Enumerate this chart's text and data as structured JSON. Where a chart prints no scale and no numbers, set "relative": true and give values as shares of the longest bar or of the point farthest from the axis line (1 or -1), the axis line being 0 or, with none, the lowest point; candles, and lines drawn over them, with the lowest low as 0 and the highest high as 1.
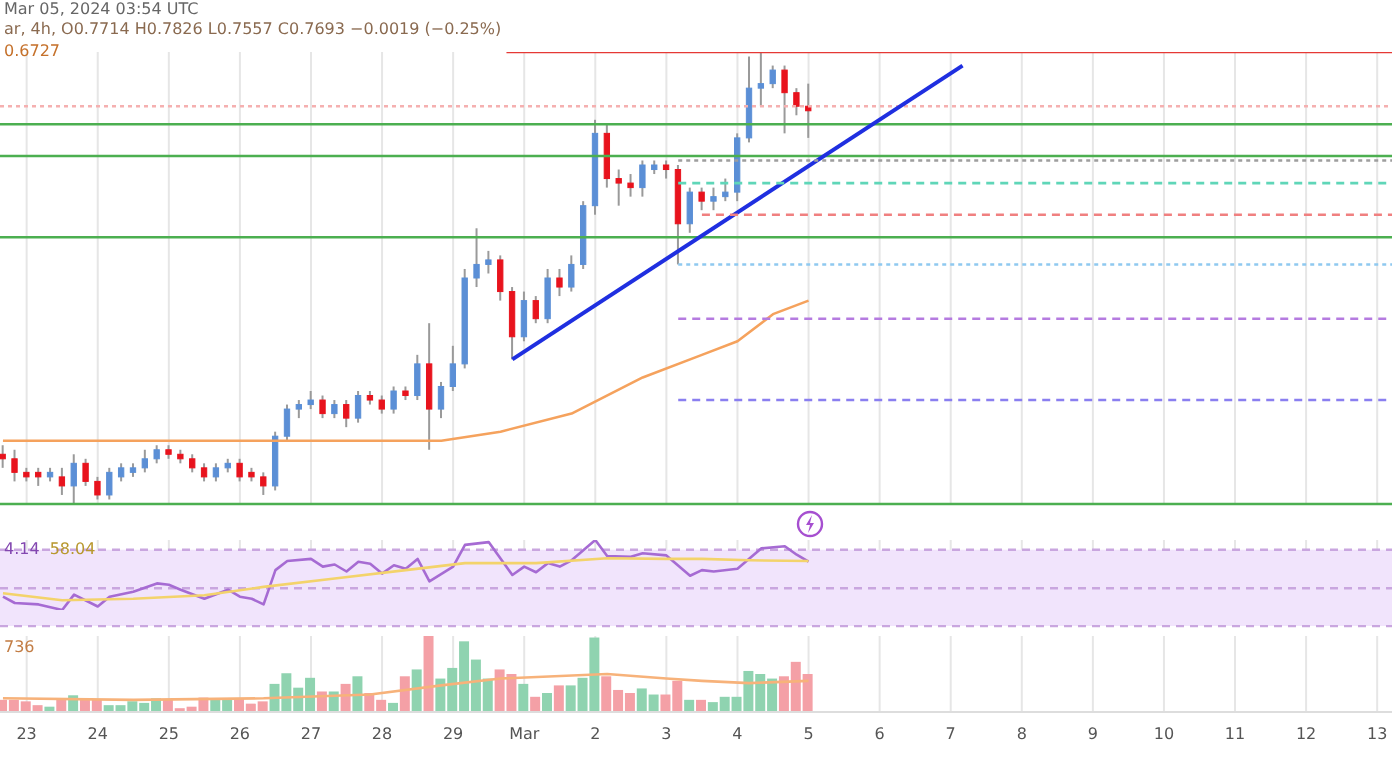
{
  "chart_data": [
    {
      "type": "candlestick",
      "relative": true,
      "title": "Mar 05, 2024 03:54 UTC",
      "subtitle": "ar, 4h, O0.7714 H0.7826 L0.7557 C0.7693 −0.0019 (−0.25%)",
      "annotations": [
        "0.6727"
      ],
      "x": [
        "2024-02-22T16:00",
        "2024-02-22T20:00",
        "2024-02-23T00:00",
        "2024-02-23T04:00",
        "2024-02-23T08:00",
        "2024-02-23T12:00",
        "2024-02-23T16:00",
        "2024-02-23T20:00",
        "2024-02-24T00:00",
        "2024-02-24T04:00",
        "2024-02-24T08:00",
        "2024-02-24T12:00",
        "2024-02-24T16:00",
        "2024-02-24T20:00",
        "2024-02-25T00:00",
        "2024-02-25T04:00",
        "2024-02-25T08:00",
        "2024-02-25T12:00",
        "2024-02-25T16:00",
        "2024-02-25T20:00",
        "2024-02-26T00:00",
        "2024-02-26T04:00",
        "2024-02-26T08:00",
        "2024-02-26T12:00",
        "2024-02-26T16:00",
        "2024-02-26T20:00",
        "2024-02-27T00:00",
        "2024-02-27T04:00",
        "2024-02-27T08:00",
        "2024-02-27T12:00",
        "2024-02-27T16:00",
        "2024-02-27T20:00",
        "2024-02-28T00:00",
        "2024-02-28T04:00",
        "2024-02-28T08:00",
        "2024-02-28T12:00",
        "2024-02-28T16:00",
        "2024-02-28T20:00",
        "2024-02-29T00:00",
        "2024-02-29T04:00",
        "2024-02-29T08:00",
        "2024-02-29T12:00",
        "2024-02-29T16:00",
        "2024-02-29T20:00",
        "2024-03-01T00:00",
        "2024-03-01T04:00",
        "2024-03-01T08:00",
        "2024-03-01T12:00",
        "2024-03-01T16:00",
        "2024-03-01T20:00",
        "2024-03-02T00:00",
        "2024-03-02T04:00",
        "2024-03-02T08:00",
        "2024-03-02T12:00",
        "2024-03-02T16:00",
        "2024-03-02T20:00",
        "2024-03-03T00:00",
        "2024-03-03T04:00",
        "2024-03-03T08:00",
        "2024-03-03T12:00",
        "2024-03-03T16:00",
        "2024-03-03T20:00",
        "2024-03-04T00:00",
        "2024-03-04T04:00",
        "2024-03-04T08:00",
        "2024-03-04T12:00",
        "2024-03-04T16:00",
        "2024-03-04T20:00",
        "2024-03-05T00:00"
      ],
      "ohlc": [
        [
          0.11,
          0.13,
          0.08,
          0.1
        ],
        [
          0.1,
          0.12,
          0.05,
          0.07
        ],
        [
          0.07,
          0.08,
          0.05,
          0.06
        ],
        [
          0.07,
          0.08,
          0.04,
          0.06
        ],
        [
          0.06,
          0.08,
          0.05,
          0.07
        ],
        [
          0.06,
          0.08,
          0.02,
          0.04
        ],
        [
          0.04,
          0.11,
          0.0,
          0.09
        ],
        [
          0.09,
          0.1,
          0.04,
          0.05
        ],
        [
          0.05,
          0.06,
          0.01,
          0.02
        ],
        [
          0.02,
          0.08,
          0.01,
          0.07
        ],
        [
          0.06,
          0.09,
          0.05,
          0.08
        ],
        [
          0.07,
          0.09,
          0.06,
          0.08
        ],
        [
          0.08,
          0.12,
          0.07,
          0.1
        ],
        [
          0.1,
          0.13,
          0.09,
          0.12
        ],
        [
          0.12,
          0.13,
          0.1,
          0.11
        ],
        [
          0.11,
          0.12,
          0.09,
          0.1
        ],
        [
          0.1,
          0.11,
          0.07,
          0.08
        ],
        [
          0.08,
          0.09,
          0.05,
          0.06
        ],
        [
          0.06,
          0.09,
          0.05,
          0.08
        ],
        [
          0.08,
          0.1,
          0.07,
          0.09
        ],
        [
          0.09,
          0.1,
          0.05,
          0.06
        ],
        [
          0.07,
          0.08,
          0.05,
          0.06
        ],
        [
          0.06,
          0.07,
          0.02,
          0.04
        ],
        [
          0.04,
          0.16,
          0.03,
          0.15
        ],
        [
          0.15,
          0.22,
          0.14,
          0.21
        ],
        [
          0.21,
          0.23,
          0.19,
          0.22
        ],
        [
          0.22,
          0.25,
          0.21,
          0.23
        ],
        [
          0.23,
          0.24,
          0.19,
          0.2
        ],
        [
          0.2,
          0.23,
          0.19,
          0.22
        ],
        [
          0.22,
          0.23,
          0.17,
          0.19
        ],
        [
          0.19,
          0.25,
          0.18,
          0.24
        ],
        [
          0.24,
          0.25,
          0.22,
          0.23
        ],
        [
          0.23,
          0.24,
          0.2,
          0.21
        ],
        [
          0.21,
          0.26,
          0.2,
          0.25
        ],
        [
          0.25,
          0.26,
          0.23,
          0.24
        ],
        [
          0.24,
          0.33,
          0.23,
          0.31
        ],
        [
          0.31,
          0.4,
          0.12,
          0.21
        ],
        [
          0.21,
          0.27,
          0.19,
          0.26
        ],
        [
          0.26,
          0.35,
          0.25,
          0.31
        ],
        [
          0.31,
          0.52,
          0.3,
          0.5
        ],
        [
          0.5,
          0.61,
          0.48,
          0.53
        ],
        [
          0.53,
          0.56,
          0.51,
          0.54
        ],
        [
          0.54,
          0.55,
          0.45,
          0.47
        ],
        [
          0.47,
          0.48,
          0.32,
          0.37
        ],
        [
          0.37,
          0.47,
          0.36,
          0.45
        ],
        [
          0.45,
          0.46,
          0.4,
          0.41
        ],
        [
          0.41,
          0.52,
          0.4,
          0.5
        ],
        [
          0.5,
          0.52,
          0.46,
          0.48
        ],
        [
          0.48,
          0.55,
          0.47,
          0.53
        ],
        [
          0.53,
          0.67,
          0.52,
          0.66
        ],
        [
          0.66,
          0.85,
          0.64,
          0.82
        ],
        [
          0.82,
          0.84,
          0.7,
          0.72
        ],
        [
          0.72,
          0.74,
          0.66,
          0.71
        ],
        [
          0.71,
          0.73,
          0.68,
          0.7
        ],
        [
          0.7,
          0.76,
          0.68,
          0.75
        ],
        [
          0.74,
          0.76,
          0.73,
          0.75
        ],
        [
          0.75,
          0.76,
          0.72,
          0.74
        ],
        [
          0.74,
          0.75,
          0.53,
          0.62
        ],
        [
          0.62,
          0.7,
          0.6,
          0.69
        ],
        [
          0.69,
          0.7,
          0.65,
          0.67
        ],
        [
          0.67,
          0.7,
          0.65,
          0.68
        ],
        [
          0.68,
          0.72,
          0.67,
          0.69
        ],
        [
          0.69,
          0.82,
          0.67,
          0.81
        ],
        [
          0.81,
          0.99,
          0.8,
          0.92
        ],
        [
          0.92,
          1.0,
          0.88,
          0.93
        ],
        [
          0.93,
          0.97,
          0.92,
          0.96
        ],
        [
          0.96,
          0.97,
          0.82,
          0.91
        ],
        [
          0.91,
          0.92,
          0.86,
          0.88
        ],
        [
          0.88,
          0.93,
          0.81,
          0.87
        ]
      ],
      "colors": [
        "#e8131d",
        "#e8131d",
        "#e8131d",
        "#e8131d",
        "#5b8fd6",
        "#e8131d",
        "#5b8fd6",
        "#e8131d",
        "#e8131d",
        "#5b8fd6",
        "#5b8fd6",
        "#5b8fd6",
        "#5b8fd6",
        "#5b8fd6",
        "#e8131d",
        "#e8131d",
        "#e8131d",
        "#e8131d",
        "#5b8fd6",
        "#5b8fd6",
        "#e8131d",
        "#e8131d",
        "#e8131d",
        "#5b8fd6",
        "#5b8fd6",
        "#5b8fd6",
        "#5b8fd6",
        "#e8131d",
        "#5b8fd6",
        "#e8131d",
        "#5b8fd6",
        "#e8131d",
        "#e8131d",
        "#5b8fd6",
        "#e8131d",
        "#5b8fd6",
        "#e8131d",
        "#5b8fd6",
        "#5b8fd6",
        "#5b8fd6",
        "#5b8fd6",
        "#5b8fd6",
        "#e8131d",
        "#e8131d",
        "#5b8fd6",
        "#e8131d",
        "#5b8fd6",
        "#e8131d",
        "#5b8fd6",
        "#5b8fd6",
        "#5b8fd6",
        "#e8131d",
        "#e8131d",
        "#e8131d",
        "#5b8fd6",
        "#5b8fd6",
        "#e8131d",
        "#e8131d",
        "#5b8fd6",
        "#e8131d",
        "#5b8fd6",
        "#5b8fd6",
        "#5b8fd6",
        "#5b8fd6",
        "#5b8fd6",
        "#5b8fd6",
        "#e8131d",
        "#e8131d",
        "#e8131d"
      ],
      "series": [
        {
          "type": "line",
          "color": "#f5a25d",
          "x": [
            "2024-02-22T16:00",
            "2024-02-26T20:00",
            "2024-02-28T20:00",
            "2024-02-29T16:00",
            "2024-03-01T16:00",
            "2024-03-02T16:00",
            "2024-03-03T12:00",
            "2024-03-04T00:00",
            "2024-03-04T12:00",
            "2024-03-05T00:00"
          ],
          "values": [
            0.14,
            0.14,
            0.14,
            0.16,
            0.2,
            0.28,
            0.33,
            0.36,
            0.42,
            0.45
          ]
        },
        {
          "type": "line",
          "color": "#1f2fe0",
          "x": [
            "2024-02-29T20:00",
            "2024-03-07T04:00"
          ],
          "values": [
            0.32,
            0.97
          ]
        },
        {
          "type": "line",
          "color": "#e53935",
          "x": [
            "2024-02-29T18:00",
            "2024-03-13T05:00"
          ],
          "values": [
            1,
            1
          ]
        },
        {
          "type": "line",
          "color": "#9e9e9e",
          "line_style": "dotted",
          "x": [
            "2024-03-03T04:00",
            "2024-03-13T05:00"
          ],
          "values": [
            0.76,
            0.76
          ]
        },
        {
          "type": "line",
          "color": "#5fd6b8",
          "line_style": "dashed",
          "x": [
            "2024-03-03T04:00",
            "2024-03-13T05:00"
          ],
          "values": [
            0.71,
            0.71
          ]
        },
        {
          "type": "line",
          "color": "#f08080",
          "line_style": "dashed",
          "x": [
            "2024-03-03T12:00",
            "2024-03-13T05:00"
          ],
          "values": [
            0.64,
            0.64
          ]
        },
        {
          "type": "line",
          "color": "#8fc9f0",
          "line_style": "dotted",
          "x": [
            "2024-03-03T04:00",
            "2024-03-13T05:00"
          ],
          "values": [
            0.53,
            0.53
          ]
        },
        {
          "type": "line",
          "color": "#b57be0",
          "line_style": "dashed",
          "x": [
            "2024-03-03T04:00",
            "2024-03-13T05:00"
          ],
          "values": [
            0.41,
            0.41
          ]
        },
        {
          "type": "line",
          "color": "#8a7ff0",
          "line_style": "dashed",
          "x": [
            "2024-03-03T04:00",
            "2024-03-13T05:00"
          ],
          "values": [
            0.23,
            0.23
          ]
        }
      ],
      "ref_lines": [
        {
          "axis": "y",
          "value": 0.88,
          "color": "#f5b0b0",
          "line_style": "dotted"
        },
        {
          "axis": "y",
          "value": 0.84,
          "color": "#4caf50"
        },
        {
          "axis": "y",
          "value": 0.77,
          "color": "#4caf50"
        },
        {
          "axis": "y",
          "value": 0.59,
          "color": "#4caf50"
        },
        {
          "axis": "y",
          "value": 0,
          "color": "#4caf50"
        }
      ],
      "xlim": [
        "2024-02-22T15:00",
        "2024-03-13T05:00"
      ],
      "xticks": [
        {
          "value": "2024-02-23",
          "label": null
        },
        {
          "value": "2024-02-24",
          "label": null
        },
        {
          "value": "2024-02-25",
          "label": null
        },
        {
          "value": "2024-02-26",
          "label": null
        },
        {
          "value": "2024-02-27",
          "label": null
        },
        {
          "value": "2024-02-28",
          "label": null
        },
        {
          "value": "2024-02-29",
          "label": null
        },
        {
          "value": "2024-03-01",
          "label": null
        },
        {
          "value": "2024-03-02",
          "label": null
        },
        {
          "value": "2024-03-03",
          "label": null
        },
        {
          "value": "2024-03-04",
          "label": null
        },
        {
          "value": "2024-03-05",
          "label": null
        },
        {
          "value": "2024-03-06",
          "label": null
        },
        {
          "value": "2024-03-07",
          "label": null
        },
        {
          "value": "2024-03-08",
          "label": null
        },
        {
          "value": "2024-03-09",
          "label": null
        },
        {
          "value": "2024-03-10",
          "label": null
        },
        {
          "value": "2024-03-11",
          "label": null
        },
        {
          "value": "2024-03-12",
          "label": null
        },
        {
          "value": "2024-03-13",
          "label": null
        }
      ],
      "tick_labels": false,
      "grid": "x"
    },
    {
      "type": "line",
      "relative": true,
      "annotations": [
        "4.14",
        "58.04"
      ],
      "series": [
        {
          "type": "line",
          "color": "#a66bd3",
          "x": [
            "2024-02-22T16:00",
            "2024-02-22T20:00",
            "2024-02-23T04:00",
            "2024-02-23T12:00",
            "2024-02-23T16:00",
            "2024-02-24T00:00",
            "2024-02-24T04:00",
            "2024-02-24T12:00",
            "2024-02-24T20:00",
            "2024-02-25T00:00",
            "2024-02-25T04:00",
            "2024-02-25T12:00",
            "2024-02-25T20:00",
            "2024-02-26T00:00",
            "2024-02-26T04:00",
            "2024-02-26T08:00",
            "2024-02-26T12:00",
            "2024-02-26T16:00",
            "2024-02-27T00:00",
            "2024-02-27T04:00",
            "2024-02-27T08:00",
            "2024-02-27T12:00",
            "2024-02-27T16:00",
            "2024-02-27T20:00",
            "2024-02-28T00:00",
            "2024-02-28T04:00",
            "2024-02-28T08:00",
            "2024-02-28T12:00",
            "2024-02-28T16:00",
            "2024-02-29T00:00",
            "2024-02-29T04:00",
            "2024-02-29T12:00",
            "2024-02-29T20:00",
            "2024-03-01T00:00",
            "2024-03-01T04:00",
            "2024-03-01T08:00",
            "2024-03-01T12:00",
            "2024-03-01T16:00",
            "2024-03-02T00:00",
            "2024-03-02T04:00",
            "2024-03-02T12:00",
            "2024-03-02T16:00",
            "2024-03-03T00:00",
            "2024-03-03T08:00",
            "2024-03-03T12:00",
            "2024-03-03T16:00",
            "2024-03-04T00:00",
            "2024-03-04T08:00",
            "2024-03-04T16:00",
            "2024-03-04T20:00",
            "2024-03-05T00:00"
          ],
          "values": [
            0.19,
            0.1,
            0.08,
            0.0,
            0.22,
            0.05,
            0.19,
            0.26,
            0.38,
            0.36,
            0.29,
            0.16,
            0.29,
            0.19,
            0.16,
            0.08,
            0.57,
            0.7,
            0.73,
            0.62,
            0.65,
            0.55,
            0.69,
            0.66,
            0.52,
            0.64,
            0.59,
            0.73,
            0.41,
            0.62,
            0.93,
            0.97,
            0.5,
            0.62,
            0.54,
            0.67,
            0.62,
            0.71,
            1.0,
            0.77,
            0.76,
            0.81,
            0.78,
            0.49,
            0.57,
            0.55,
            0.59,
            0.88,
            0.91,
            0.79,
            0.69
          ]
        },
        {
          "type": "line",
          "color": "#f3d36b",
          "x": [
            "2024-02-22T16:00",
            "2024-02-23T12:00",
            "2024-02-24T12:00",
            "2024-02-25T12:00",
            "2024-02-26T08:00",
            "2024-02-27T08:00",
            "2024-02-28T08:00",
            "2024-02-29T04:00",
            "2024-03-01T04:00",
            "2024-03-02T04:00",
            "2024-03-03T00:00",
            "2024-03-03T12:00",
            "2024-03-04T04:00",
            "2024-03-05T00:00"
          ],
          "values": [
            0.24,
            0.14,
            0.16,
            0.21,
            0.33,
            0.45,
            0.57,
            0.67,
            0.67,
            0.74,
            0.73,
            0.73,
            0.71,
            0.7
          ]
        }
      ],
      "bands": [
        {
          "axis": "y",
          "from": -0.23,
          "to": 0.86,
          "color": "#f1e4fc"
        }
      ],
      "ref_lines": [
        {
          "axis": "y",
          "value": 0.86,
          "color": "#c9a6df",
          "line_style": "dashed"
        },
        {
          "axis": "y",
          "value": 0.31,
          "color": "#c9a6df",
          "line_style": "dashed"
        },
        {
          "axis": "y",
          "value": -0.23,
          "color": "#c9a6df",
          "line_style": "dashed"
        }
      ],
      "xlim": [
        "2024-02-22T15:00",
        "2024-03-13T05:00"
      ],
      "xticks": [
        {
          "value": "2024-02-23",
          "label": null
        },
        {
          "value": "2024-02-24",
          "label": null
        },
        {
          "value": "2024-02-25",
          "label": null
        },
        {
          "value": "2024-02-26",
          "label": null
        },
        {
          "value": "2024-02-27",
          "label": null
        },
        {
          "value": "2024-02-28",
          "label": null
        },
        {
          "value": "2024-02-29",
          "label": null
        },
        {
          "value": "2024-03-01",
          "label": null
        },
        {
          "value": "2024-03-02",
          "label": null
        },
        {
          "value": "2024-03-03",
          "label": null
        },
        {
          "value": "2024-03-04",
          "label": null
        },
        {
          "value": "2024-03-05",
          "label": null
        },
        {
          "value": "2024-03-06",
          "label": null
        },
        {
          "value": "2024-03-07",
          "label": null
        },
        {
          "value": "2024-03-08",
          "label": null
        },
        {
          "value": "2024-03-09",
          "label": null
        },
        {
          "value": "2024-03-10",
          "label": null
        },
        {
          "value": "2024-03-11",
          "label": null
        },
        {
          "value": "2024-03-12",
          "label": null
        },
        {
          "value": "2024-03-13",
          "label": null
        }
      ],
      "tick_labels": false,
      "grid": "x"
    },
    {
      "type": "bar",
      "relative": true,
      "annotations": [
        "736"
      ],
      "x": [
        "2024-02-22T16:00",
        "2024-02-22T20:00",
        "2024-02-23T00:00",
        "2024-02-23T04:00",
        "2024-02-23T08:00",
        "2024-02-23T12:00",
        "2024-02-23T16:00",
        "2024-02-23T20:00",
        "2024-02-24T00:00",
        "2024-02-24T04:00",
        "2024-02-24T08:00",
        "2024-02-24T12:00",
        "2024-02-24T16:00",
        "2024-02-24T20:00",
        "2024-02-25T00:00",
        "2024-02-25T04:00",
        "2024-02-25T08:00",
        "2024-02-25T12:00",
        "2024-02-25T16:00",
        "2024-02-25T20:00",
        "2024-02-26T00:00",
        "2024-02-26T04:00",
        "2024-02-26T08:00",
        "2024-02-26T12:00",
        "2024-02-26T16:00",
        "2024-02-26T20:00",
        "2024-02-27T00:00",
        "2024-02-27T04:00",
        "2024-02-27T08:00",
        "2024-02-27T12:00",
        "2024-02-27T16:00",
        "2024-02-27T20:00",
        "2024-02-28T00:00",
        "2024-02-28T04:00",
        "2024-02-28T08:00",
        "2024-02-28T12:00",
        "2024-02-28T16:00",
        "2024-02-28T20:00",
        "2024-02-29T00:00",
        "2024-02-29T04:00",
        "2024-02-29T08:00",
        "2024-02-29T12:00",
        "2024-02-29T16:00",
        "2024-02-29T20:00",
        "2024-03-01T00:00",
        "2024-03-01T04:00",
        "2024-03-01T08:00",
        "2024-03-01T12:00",
        "2024-03-01T16:00",
        "2024-03-01T20:00",
        "2024-03-02T00:00",
        "2024-03-02T04:00",
        "2024-03-02T08:00",
        "2024-03-02T12:00",
        "2024-03-02T16:00",
        "2024-03-02T20:00",
        "2024-03-03T00:00",
        "2024-03-03T04:00",
        "2024-03-03T08:00",
        "2024-03-03T12:00",
        "2024-03-03T16:00",
        "2024-03-03T20:00",
        "2024-03-04T00:00",
        "2024-03-04T04:00",
        "2024-03-04T08:00",
        "2024-03-04T12:00",
        "2024-03-04T16:00",
        "2024-03-04T20:00",
        "2024-03-05T00:00"
      ],
      "values": [
        0.16,
        0.16,
        0.14,
        0.09,
        0.07,
        0.18,
        0.22,
        0.16,
        0.16,
        0.09,
        0.09,
        0.14,
        0.12,
        0.18,
        0.16,
        0.05,
        0.07,
        0.19,
        0.18,
        0.16,
        0.18,
        0.11,
        0.14,
        0.37,
        0.51,
        0.32,
        0.45,
        0.27,
        0.27,
        0.37,
        0.47,
        0.25,
        0.16,
        0.12,
        0.47,
        0.56,
        1.0,
        0.44,
        0.58,
        0.93,
        0.69,
        0.44,
        0.56,
        0.5,
        0.37,
        0.2,
        0.25,
        0.35,
        0.35,
        0.45,
        0.98,
        0.47,
        0.29,
        0.25,
        0.31,
        0.23,
        0.23,
        0.41,
        0.16,
        0.16,
        0.13,
        0.2,
        0.2,
        0.54,
        0.5,
        0.44,
        0.47,
        0.66,
        0.5
      ],
      "colors": [
        "#f4a0a6",
        "#f4a0a6",
        "#f4a0a6",
        "#f4a0a6",
        "#8fd3b0",
        "#f4a0a6",
        "#8fd3b0",
        "#f4a0a6",
        "#f4a0a6",
        "#8fd3b0",
        "#8fd3b0",
        "#8fd3b0",
        "#8fd3b0",
        "#8fd3b0",
        "#f4a0a6",
        "#f4a0a6",
        "#f4a0a6",
        "#f4a0a6",
        "#8fd3b0",
        "#8fd3b0",
        "#f4a0a6",
        "#f4a0a6",
        "#f4a0a6",
        "#8fd3b0",
        "#8fd3b0",
        "#8fd3b0",
        "#8fd3b0",
        "#f4a0a6",
        "#8fd3b0",
        "#f4a0a6",
        "#8fd3b0",
        "#f4a0a6",
        "#f4a0a6",
        "#8fd3b0",
        "#f4a0a6",
        "#8fd3b0",
        "#f4a0a6",
        "#8fd3b0",
        "#8fd3b0",
        "#8fd3b0",
        "#8fd3b0",
        "#8fd3b0",
        "#f4a0a6",
        "#f4a0a6",
        "#8fd3b0",
        "#f4a0a6",
        "#8fd3b0",
        "#f4a0a6",
        "#8fd3b0",
        "#8fd3b0",
        "#8fd3b0",
        "#f4a0a6",
        "#f4a0a6",
        "#f4a0a6",
        "#8fd3b0",
        "#8fd3b0",
        "#f4a0a6",
        "#f4a0a6",
        "#8fd3b0",
        "#f4a0a6",
        "#8fd3b0",
        "#8fd3b0",
        "#8fd3b0",
        "#8fd3b0",
        "#8fd3b0",
        "#8fd3b0",
        "#f4a0a6",
        "#f4a0a6",
        "#f4a0a6"
      ],
      "series": [
        {
          "type": "line",
          "color": "#f7b27a",
          "x": [
            "2024-02-22T16:00",
            "2024-02-24T12:00",
            "2024-02-26T08:00",
            "2024-02-27T20:00",
            "2024-02-28T20:00",
            "2024-02-29T16:00",
            "2024-03-02T04:00",
            "2024-03-03T00:00",
            "2024-03-03T12:00",
            "2024-03-04T04:00",
            "2024-03-05T00:00"
          ],
          "values": [
            0.18,
            0.16,
            0.18,
            0.23,
            0.35,
            0.44,
            0.5,
            0.44,
            0.41,
            0.38,
            0.41
          ]
        }
      ],
      "xlim": [
        "2024-02-22T15:00",
        "2024-03-13T05:00"
      ],
      "xticks": [
        {
          "value": "2024-02-23",
          "label": "23"
        },
        {
          "value": "2024-02-24",
          "label": "24"
        },
        {
          "value": "2024-02-25",
          "label": "25"
        },
        {
          "value": "2024-02-26",
          "label": "26"
        },
        {
          "value": "2024-02-27",
          "label": "27"
        },
        {
          "value": "2024-02-28",
          "label": "28"
        },
        {
          "value": "2024-02-29",
          "label": "29"
        },
        {
          "value": "2024-03-01",
          "label": "Mar"
        },
        {
          "value": "2024-03-02",
          "label": "2"
        },
        {
          "value": "2024-03-03",
          "label": "3"
        },
        {
          "value": "2024-03-04",
          "label": "4"
        },
        {
          "value": "2024-03-05",
          "label": "5"
        },
        {
          "value": "2024-03-06",
          "label": "6"
        },
        {
          "value": "2024-03-07",
          "label": "7"
        },
        {
          "value": "2024-03-08",
          "label": "8"
        },
        {
          "value": "2024-03-09",
          "label": "9"
        },
        {
          "value": "2024-03-10",
          "label": "10"
        },
        {
          "value": "2024-03-11",
          "label": "11"
        },
        {
          "value": "2024-03-12",
          "label": "12"
        },
        {
          "value": "2024-03-13",
          "label": "13"
        }
      ],
      "grid": "x"
    }
  ]
}
